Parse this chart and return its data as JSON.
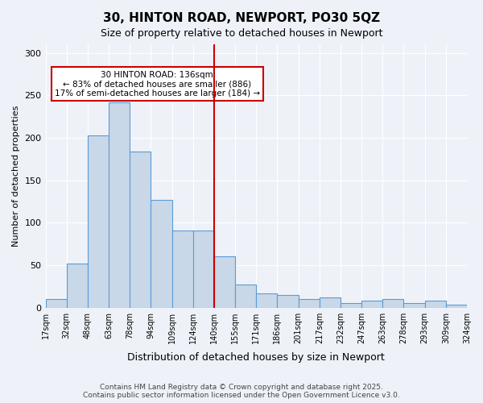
{
  "title": "30, HINTON ROAD, NEWPORT, PO30 5QZ",
  "subtitle": "Size of property relative to detached houses in Newport",
  "xlabel": "Distribution of detached houses by size in Newport",
  "ylabel": "Number of detached properties",
  "bin_labels": [
    "17sqm",
    "32sqm",
    "48sqm",
    "63sqm",
    "78sqm",
    "94sqm",
    "109sqm",
    "124sqm",
    "140sqm",
    "155sqm",
    "171sqm",
    "186sqm",
    "201sqm",
    "217sqm",
    "232sqm",
    "247sqm",
    "263sqm",
    "278sqm",
    "293sqm",
    "309sqm",
    "324sqm"
  ],
  "bar_values": [
    10,
    52,
    203,
    242,
    184,
    127,
    91,
    91,
    60,
    27,
    17,
    15,
    10,
    12,
    5,
    8,
    10,
    5,
    8,
    3
  ],
  "bar_color": "#c8d8e8",
  "bar_edge_color": "#5b9bd5",
  "vline_color": "#cc0000",
  "annotation_text": "30 HINTON ROAD: 136sqm\n← 83% of detached houses are smaller (886)\n17% of semi-detached houses are larger (184) →",
  "annotation_box_color": "#cc0000",
  "ylim": [
    0,
    310
  ],
  "yticks": [
    0,
    50,
    100,
    150,
    200,
    250,
    300
  ],
  "background_color": "#eef2f8",
  "grid_color": "#ffffff",
  "footer_line1": "Contains HM Land Registry data © Crown copyright and database right 2025.",
  "footer_line2": "Contains public sector information licensed under the Open Government Licence v3.0."
}
